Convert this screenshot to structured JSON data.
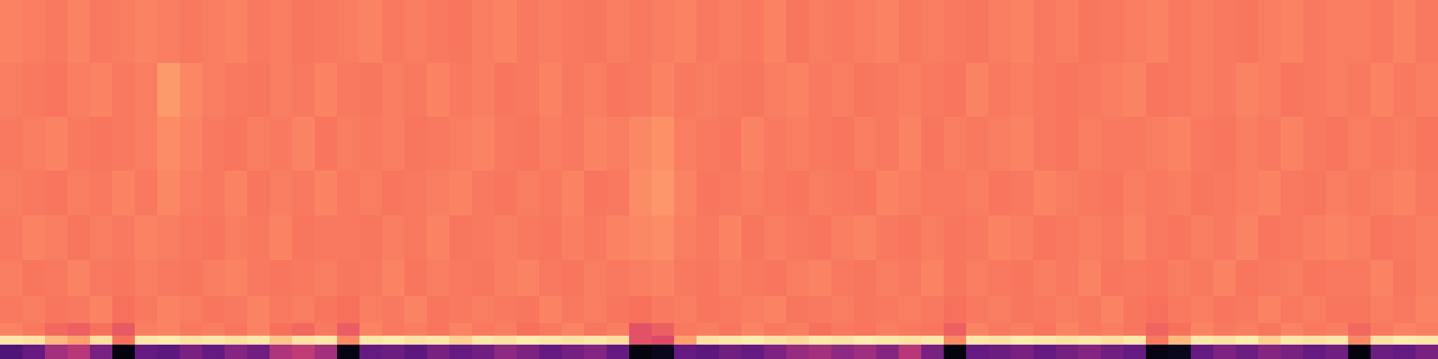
{
  "chart_data": {
    "type": "heatmap",
    "tick_labels": false,
    "grid": false,
    "xlim": [
      -0.5,
      63.5
    ],
    "ylim": [
      0,
      400
    ],
    "zlim": [
      0,
      1
    ],
    "y": [
      0,
      16,
      26,
      40,
      70,
      110,
      160,
      210,
      270,
      330,
      400
    ],
    "cells": [
      [
        0.25,
        0.3,
        0.45,
        0.5,
        0.35,
        0.02,
        0.3,
        0.28,
        0.35,
        0.3,
        0.38,
        0.33,
        0.48,
        0.52,
        0.45,
        0.03,
        0.3,
        0.32,
        0.28,
        0.35,
        0.3,
        0.33,
        0.4,
        0.36,
        0.3,
        0.34,
        0.38,
        0.3,
        0.02,
        0.05,
        0.3,
        0.28,
        0.33,
        0.3,
        0.36,
        0.42,
        0.45,
        0.4,
        0.44,
        0.38,
        0.5,
        0.35,
        0.02,
        0.3,
        0.32,
        0.35,
        0.3,
        0.34,
        0.38,
        0.33,
        0.3,
        0.03,
        0.05,
        0.3,
        0.36,
        0.32,
        0.38,
        0.35,
        0.3,
        0.33,
        0.02,
        0.32,
        0.3,
        0.35
      ],
      [
        0.95,
        0.94,
        0.85,
        0.8,
        0.93,
        0.7,
        0.95,
        0.96,
        0.94,
        0.95,
        0.93,
        0.95,
        0.88,
        0.94,
        0.95,
        0.75,
        0.95,
        0.96,
        0.94,
        0.95,
        0.9,
        0.95,
        0.94,
        0.96,
        0.95,
        0.94,
        0.95,
        0.93,
        0.62,
        0.6,
        0.8,
        0.94,
        0.95,
        0.96,
        0.94,
        0.92,
        0.95,
        0.94,
        0.96,
        0.95,
        0.94,
        0.95,
        0.75,
        0.95,
        0.94,
        0.96,
        0.95,
        0.94,
        0.95,
        0.93,
        0.95,
        0.72,
        0.85,
        0.95,
        0.94,
        0.96,
        0.9,
        0.95,
        0.94,
        0.95,
        0.75,
        0.94,
        0.96,
        0.95
      ],
      [
        0.74,
        0.72,
        0.68,
        0.66,
        0.7,
        0.64,
        0.73,
        0.74,
        0.72,
        0.73,
        0.71,
        0.74,
        0.7,
        0.68,
        0.72,
        0.65,
        0.74,
        0.72,
        0.73,
        0.71,
        0.74,
        0.72,
        0.73,
        0.7,
        0.72,
        0.74,
        0.71,
        0.73,
        0.62,
        0.66,
        0.72,
        0.73,
        0.71,
        0.74,
        0.72,
        0.73,
        0.7,
        0.72,
        0.71,
        0.73,
        0.72,
        0.71,
        0.66,
        0.74,
        0.72,
        0.73,
        0.71,
        0.74,
        0.72,
        0.73,
        0.71,
        0.67,
        0.7,
        0.74,
        0.72,
        0.73,
        0.71,
        0.74,
        0.72,
        0.73,
        0.68,
        0.72,
        0.74,
        0.73
      ],
      [
        0.72,
        0.73,
        0.71,
        0.72,
        0.74,
        0.7,
        0.72,
        0.74,
        0.73,
        0.71,
        0.72,
        0.74,
        0.72,
        0.73,
        0.71,
        0.7,
        0.73,
        0.72,
        0.74,
        0.71,
        0.72,
        0.73,
        0.72,
        0.71,
        0.74,
        0.72,
        0.73,
        0.71,
        0.7,
        0.72,
        0.73,
        0.71,
        0.72,
        0.73,
        0.74,
        0.71,
        0.72,
        0.73,
        0.71,
        0.72,
        0.73,
        0.72,
        0.7,
        0.72,
        0.73,
        0.71,
        0.72,
        0.73,
        0.72,
        0.74,
        0.71,
        0.7,
        0.72,
        0.73,
        0.71,
        0.72,
        0.74,
        0.72,
        0.73,
        0.71,
        0.71,
        0.73,
        0.72,
        0.74
      ],
      [
        0.73,
        0.71,
        0.72,
        0.74,
        0.72,
        0.71,
        0.73,
        0.72,
        0.71,
        0.73,
        0.74,
        0.72,
        0.71,
        0.72,
        0.73,
        0.71,
        0.72,
        0.74,
        0.71,
        0.73,
        0.72,
        0.71,
        0.73,
        0.74,
        0.72,
        0.71,
        0.73,
        0.72,
        0.73,
        0.74,
        0.72,
        0.71,
        0.73,
        0.72,
        0.71,
        0.73,
        0.74,
        0.72,
        0.71,
        0.73,
        0.72,
        0.74,
        0.71,
        0.73,
        0.72,
        0.71,
        0.73,
        0.72,
        0.74,
        0.71,
        0.72,
        0.71,
        0.73,
        0.72,
        0.74,
        0.71,
        0.72,
        0.73,
        0.71,
        0.72,
        0.72,
        0.74,
        0.71,
        0.73
      ],
      [
        0.72,
        0.74,
        0.73,
        0.71,
        0.73,
        0.72,
        0.74,
        0.73,
        0.72,
        0.71,
        0.73,
        0.72,
        0.74,
        0.71,
        0.72,
        0.72,
        0.71,
        0.73,
        0.72,
        0.74,
        0.71,
        0.72,
        0.73,
        0.72,
        0.71,
        0.73,
        0.72,
        0.74,
        0.75,
        0.76,
        0.73,
        0.72,
        0.74,
        0.71,
        0.73,
        0.72,
        0.71,
        0.73,
        0.74,
        0.72,
        0.71,
        0.73,
        0.71,
        0.72,
        0.74,
        0.73,
        0.71,
        0.72,
        0.73,
        0.72,
        0.74,
        0.72,
        0.71,
        0.73,
        0.72,
        0.74,
        0.71,
        0.72,
        0.73,
        0.74,
        0.73,
        0.71,
        0.72,
        0.73
      ],
      [
        0.73,
        0.72,
        0.71,
        0.73,
        0.72,
        0.74,
        0.72,
        0.75,
        0.73,
        0.72,
        0.74,
        0.71,
        0.73,
        0.72,
        0.74,
        0.72,
        0.73,
        0.71,
        0.72,
        0.73,
        0.74,
        0.72,
        0.71,
        0.73,
        0.72,
        0.74,
        0.71,
        0.72,
        0.76,
        0.78,
        0.74,
        0.71,
        0.72,
        0.73,
        0.72,
        0.71,
        0.73,
        0.72,
        0.71,
        0.74,
        0.73,
        0.72,
        0.72,
        0.73,
        0.71,
        0.72,
        0.74,
        0.73,
        0.72,
        0.71,
        0.73,
        0.72,
        0.73,
        0.71,
        0.72,
        0.73,
        0.74,
        0.72,
        0.71,
        0.73,
        0.72,
        0.73,
        0.74,
        0.72
      ],
      [
        0.72,
        0.73,
        0.74,
        0.72,
        0.71,
        0.72,
        0.73,
        0.76,
        0.74,
        0.72,
        0.71,
        0.73,
        0.72,
        0.74,
        0.71,
        0.73,
        0.72,
        0.73,
        0.71,
        0.72,
        0.73,
        0.74,
        0.72,
        0.71,
        0.73,
        0.72,
        0.74,
        0.73,
        0.75,
        0.77,
        0.73,
        0.72,
        0.71,
        0.74,
        0.72,
        0.73,
        0.72,
        0.71,
        0.73,
        0.72,
        0.74,
        0.71,
        0.73,
        0.72,
        0.73,
        0.74,
        0.72,
        0.71,
        0.73,
        0.72,
        0.72,
        0.73,
        0.74,
        0.72,
        0.71,
        0.73,
        0.72,
        0.74,
        0.72,
        0.71,
        0.73,
        0.72,
        0.73,
        0.71
      ],
      [
        0.73,
        0.72,
        0.71,
        0.73,
        0.74,
        0.72,
        0.73,
        0.79,
        0.75,
        0.73,
        0.72,
        0.71,
        0.73,
        0.72,
        0.74,
        0.72,
        0.71,
        0.73,
        0.72,
        0.74,
        0.72,
        0.73,
        0.71,
        0.72,
        0.74,
        0.72,
        0.73,
        0.71,
        0.72,
        0.74,
        0.72,
        0.73,
        0.72,
        0.71,
        0.73,
        0.74,
        0.72,
        0.73,
        0.71,
        0.72,
        0.73,
        0.72,
        0.71,
        0.74,
        0.72,
        0.73,
        0.72,
        0.71,
        0.72,
        0.73,
        0.74,
        0.71,
        0.72,
        0.73,
        0.72,
        0.74,
        0.73,
        0.71,
        0.72,
        0.73,
        0.72,
        0.74,
        0.72,
        0.73
      ],
      [
        0.74,
        0.73,
        0.72,
        0.74,
        0.72,
        0.73,
        0.74,
        0.73,
        0.72,
        0.73,
        0.74,
        0.72,
        0.73,
        0.71,
        0.72,
        0.73,
        0.74,
        0.72,
        0.73,
        0.72,
        0.71,
        0.73,
        0.74,
        0.72,
        0.73,
        0.72,
        0.71,
        0.73,
        0.72,
        0.73,
        0.74,
        0.72,
        0.73,
        0.72,
        0.74,
        0.71,
        0.73,
        0.72,
        0.73,
        0.74,
        0.72,
        0.73,
        0.72,
        0.71,
        0.73,
        0.74,
        0.72,
        0.73,
        0.71,
        0.72,
        0.73,
        0.74,
        0.72,
        0.73,
        0.72,
        0.71,
        0.73,
        0.74,
        0.72,
        0.73,
        0.73,
        0.72,
        0.74,
        0.72
      ]
    ]
  }
}
